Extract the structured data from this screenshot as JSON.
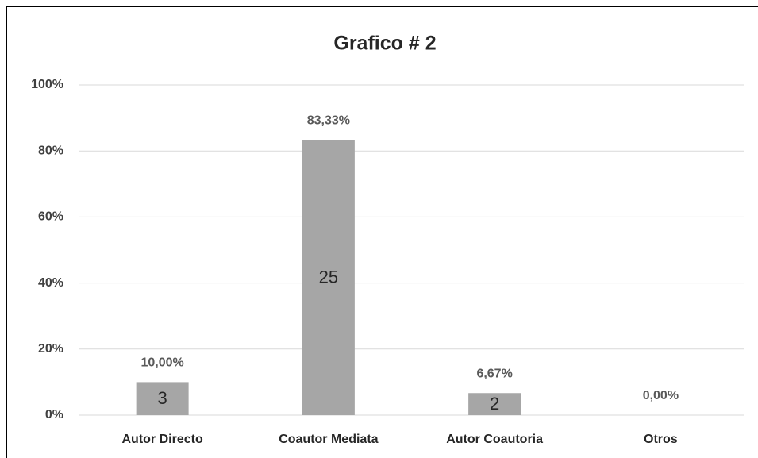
{
  "chart_data": {
    "type": "bar",
    "title": "Grafico # 2",
    "categories": [
      "Autor Directo",
      "Coautor Mediata",
      "Autor Coautoria",
      "Otros"
    ],
    "values": [
      10,
      83.33,
      6.67,
      0
    ],
    "value_labels": [
      "10,00%",
      "83,33%",
      "6,67%",
      "0,00%"
    ],
    "counts": [
      3,
      25,
      2,
      null
    ],
    "color": "#a6a6a6",
    "ylim": [
      0,
      100
    ],
    "yticks": [
      {
        "value": 0,
        "label": "0%"
      },
      {
        "value": 20,
        "label": "20%"
      },
      {
        "value": 40,
        "label": "40%"
      },
      {
        "value": 60,
        "label": "60%"
      },
      {
        "value": 80,
        "label": "80%"
      },
      {
        "value": 100,
        "label": "100%"
      }
    ],
    "grid": true
  }
}
